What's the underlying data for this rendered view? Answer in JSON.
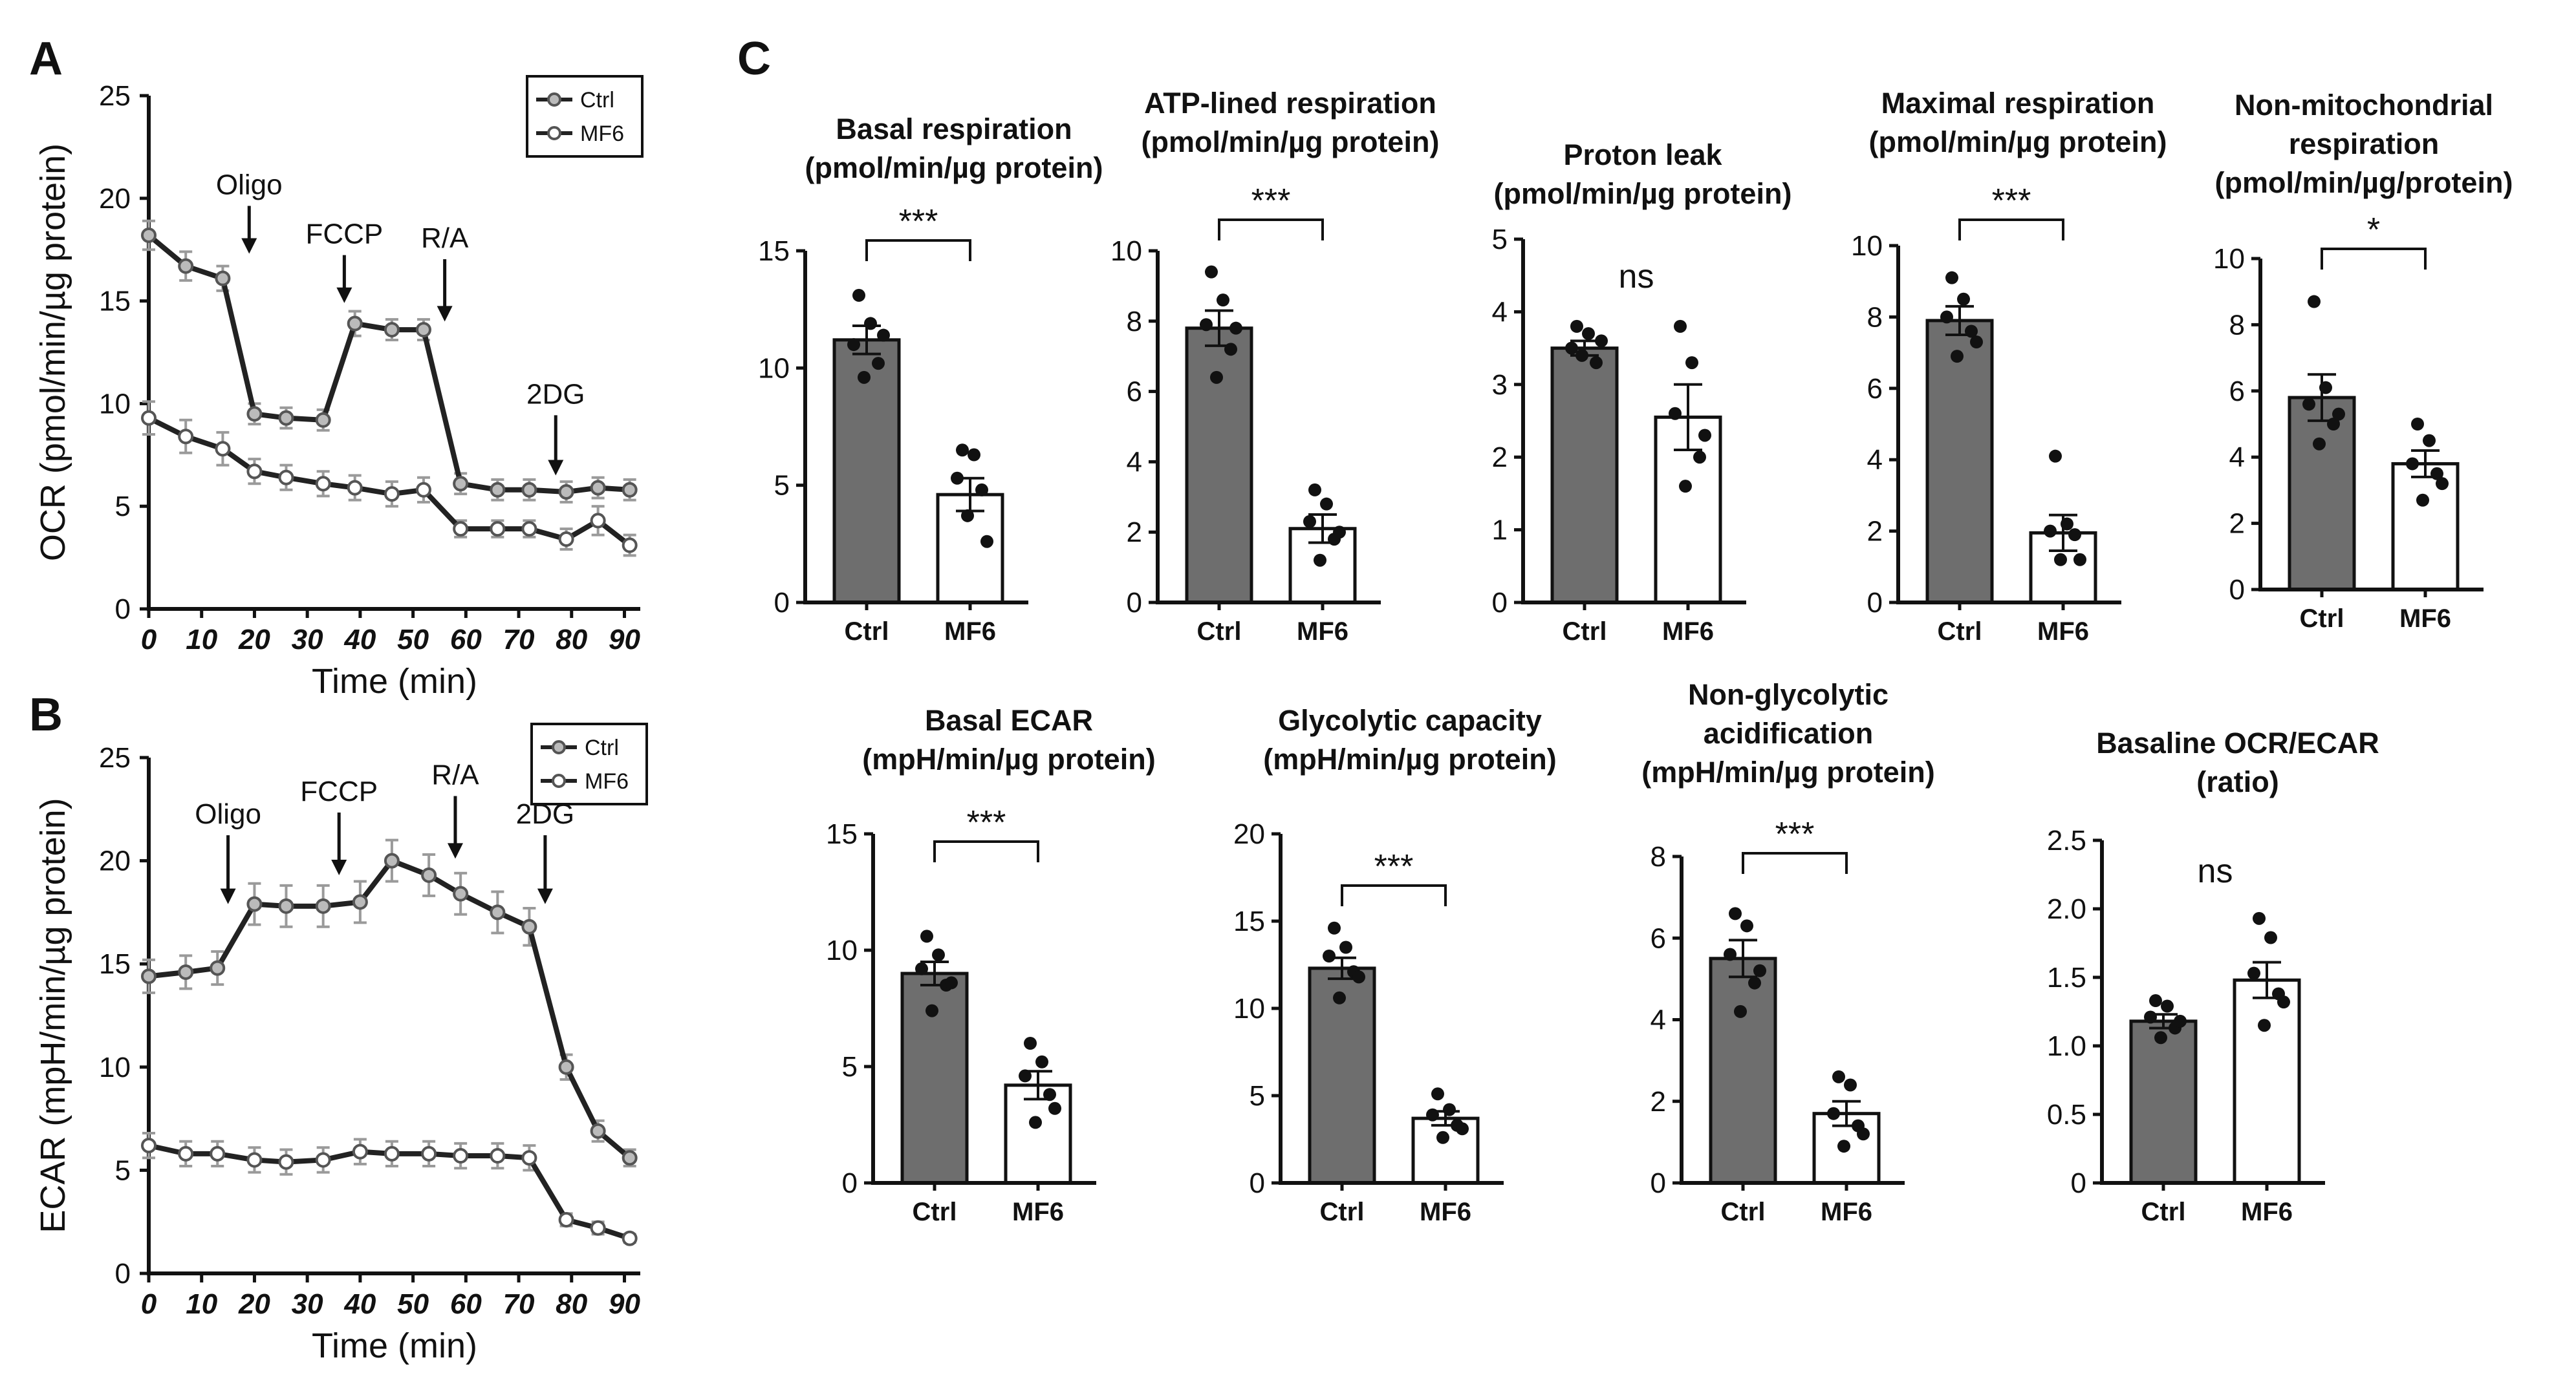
{
  "panels": {
    "a": "A",
    "b": "B",
    "c": "C"
  },
  "colors": {
    "ctrl_bar": "#6e6e6e",
    "mf6_bar": "#ffffff",
    "line": "#222222",
    "err": "#9a9a9a"
  },
  "chart_data": [
    {
      "id": "A",
      "type": "line",
      "xlabel": "Time (min)",
      "ylabel": "OCR (pmol/min/µg protein)",
      "xlim": [
        0,
        93
      ],
      "ylim": [
        0,
        25
      ],
      "xticks": [
        0,
        10,
        20,
        30,
        40,
        50,
        60,
        70,
        80,
        90
      ],
      "yticks": [
        0,
        5,
        10,
        15,
        20,
        25
      ],
      "legend": [
        "Ctrl",
        "MF6"
      ],
      "events": [
        {
          "label": "Oligo",
          "x": 19,
          "ytip": 17.3,
          "ytxt": 20.2
        },
        {
          "label": "FCCP",
          "x": 37,
          "ytip": 14.9,
          "ytxt": 17.8
        },
        {
          "label": "R/A",
          "x": 56,
          "ytip": 14.0,
          "ytxt": 17.6
        },
        {
          "label": "2DG",
          "x": 77,
          "ytip": 6.5,
          "ytxt": 10.0
        }
      ],
      "x": [
        0,
        7,
        14,
        20,
        26,
        33,
        39,
        46,
        52,
        59,
        66,
        72,
        79,
        85,
        91
      ],
      "series": [
        {
          "name": "Ctrl",
          "values": [
            18.2,
            16.7,
            16.1,
            9.5,
            9.3,
            9.2,
            13.9,
            13.6,
            13.6,
            6.1,
            5.8,
            5.8,
            5.7,
            5.9,
            5.8
          ],
          "err": [
            0.7,
            0.7,
            0.6,
            0.5,
            0.5,
            0.5,
            0.6,
            0.5,
            0.5,
            0.5,
            0.5,
            0.5,
            0.5,
            0.5,
            0.5
          ]
        },
        {
          "name": "MF6",
          "values": [
            9.3,
            8.4,
            7.8,
            6.7,
            6.4,
            6.1,
            5.9,
            5.6,
            5.8,
            3.9,
            3.9,
            3.9,
            3.4,
            4.3,
            3.1
          ],
          "err": [
            0.8,
            0.8,
            0.8,
            0.6,
            0.6,
            0.6,
            0.6,
            0.6,
            0.6,
            0.4,
            0.4,
            0.4,
            0.5,
            0.7,
            0.5
          ]
        }
      ]
    },
    {
      "id": "B",
      "type": "line",
      "xlabel": "Time (min)",
      "ylabel": "ECAR (mpH/min/µg protein)",
      "xlim": [
        0,
        93
      ],
      "ylim": [
        0,
        25
      ],
      "xticks": [
        0,
        10,
        20,
        30,
        40,
        50,
        60,
        70,
        80,
        90
      ],
      "yticks": [
        0,
        5,
        10,
        15,
        20,
        25
      ],
      "legend": [
        "Ctrl",
        "MF6"
      ],
      "events": [
        {
          "label": "Oligo",
          "x": 15,
          "ytip": 17.9,
          "ytxt": 21.8
        },
        {
          "label": "FCCP",
          "x": 36,
          "ytip": 19.3,
          "ytxt": 22.9
        },
        {
          "label": "R/A",
          "x": 58,
          "ytip": 20.1,
          "ytxt": 23.7
        },
        {
          "label": "2DG",
          "x": 75,
          "ytip": 17.9,
          "ytxt": 21.8
        }
      ],
      "x": [
        0,
        7,
        13,
        20,
        26,
        33,
        40,
        46,
        53,
        59,
        66,
        72,
        79,
        85,
        91
      ],
      "series": [
        {
          "name": "Ctrl",
          "values": [
            14.4,
            14.6,
            14.8,
            17.9,
            17.8,
            17.8,
            18.0,
            20.0,
            19.3,
            18.4,
            17.5,
            16.8,
            10.0,
            6.9,
            5.6
          ],
          "err": [
            0.8,
            0.8,
            0.8,
            1.0,
            1.0,
            1.0,
            1.0,
            1.0,
            1.0,
            1.0,
            1.0,
            0.9,
            0.6,
            0.5,
            0.4
          ]
        },
        {
          "name": "MF6",
          "values": [
            6.2,
            5.8,
            5.8,
            5.5,
            5.4,
            5.5,
            5.9,
            5.8,
            5.8,
            5.7,
            5.7,
            5.6,
            2.6,
            2.2,
            1.7
          ],
          "err": [
            0.6,
            0.6,
            0.6,
            0.6,
            0.6,
            0.6,
            0.6,
            0.6,
            0.6,
            0.6,
            0.6,
            0.6,
            0.3,
            0.3,
            0.2
          ]
        }
      ]
    },
    {
      "id": "C1",
      "type": "bar",
      "title": [
        "Basal respiration",
        "(pmol/min/µg protein)"
      ],
      "categories": [
        "Ctrl",
        "MF6"
      ],
      "values": [
        11.2,
        4.6
      ],
      "sem": [
        0.6,
        0.7
      ],
      "points": [
        [
          13.1,
          11.9,
          11.0,
          10.2,
          9.6,
          11.4
        ],
        [
          6.5,
          6.3,
          5.3,
          4.8,
          3.7,
          2.6
        ]
      ],
      "ylim": [
        0,
        15
      ],
      "yticks": [
        0,
        5,
        10,
        15
      ],
      "yticklabels": [
        "0",
        "5",
        "10",
        "15"
      ],
      "sig": "***"
    },
    {
      "id": "C2",
      "type": "bar",
      "title": [
        "ATP-lined respiration",
        "(pmol/min/µg protein)"
      ],
      "categories": [
        "Ctrl",
        "MF6"
      ],
      "values": [
        7.8,
        2.1
      ],
      "sem": [
        0.5,
        0.4
      ],
      "points": [
        [
          9.4,
          8.6,
          7.9,
          7.2,
          6.4,
          7.8
        ],
        [
          3.2,
          2.8,
          2.3,
          1.8,
          1.2,
          2.0
        ]
      ],
      "ylim": [
        0,
        10
      ],
      "yticks": [
        0,
        2,
        4,
        6,
        8,
        10
      ],
      "yticklabels": [
        "0",
        "2",
        "4",
        "6",
        "8",
        "10"
      ],
      "sig": "***"
    },
    {
      "id": "C3",
      "type": "bar",
      "title": [
        "Proton leak",
        "(pmol/min/µg protein)"
      ],
      "categories": [
        "Ctrl",
        "MF6"
      ],
      "values": [
        3.5,
        2.55
      ],
      "sem": [
        0.1,
        0.45
      ],
      "points": [
        [
          3.8,
          3.7,
          3.5,
          3.3,
          3.4,
          3.6
        ],
        [
          3.8,
          3.3,
          2.6,
          2.0,
          1.6,
          2.3
        ]
      ],
      "ylim": [
        0,
        5
      ],
      "yticks": [
        0,
        1,
        2,
        3,
        4,
        5
      ],
      "yticklabels": [
        "0",
        "1",
        "2",
        "3",
        "4",
        "5"
      ],
      "sig": "ns"
    },
    {
      "id": "C4",
      "type": "bar",
      "title": [
        "Maximal respiration",
        "(pmol/min/µg protein)"
      ],
      "categories": [
        "Ctrl",
        "MF6"
      ],
      "values": [
        7.9,
        1.95
      ],
      "sem": [
        0.4,
        0.5
      ],
      "points": [
        [
          9.1,
          8.5,
          8.0,
          7.6,
          6.9,
          7.3
        ],
        [
          4.1,
          2.2,
          2.0,
          1.9,
          1.2,
          1.2
        ]
      ],
      "ylim": [
        0,
        10
      ],
      "yticks": [
        0,
        2,
        4,
        6,
        8,
        10
      ],
      "yticklabels": [
        "0",
        "2",
        "4",
        "6",
        "8",
        "10"
      ],
      "sig": "***"
    },
    {
      "id": "C5",
      "type": "bar",
      "title": [
        "Non-mitochondrial",
        "respiration",
        "(pmol/min/µg/protein)"
      ],
      "categories": [
        "Ctrl",
        "MF6"
      ],
      "values": [
        5.8,
        3.8
      ],
      "sem": [
        0.7,
        0.4
      ],
      "points": [
        [
          8.7,
          6.1,
          5.6,
          5.0,
          4.4,
          5.3
        ],
        [
          5.0,
          4.5,
          3.8,
          3.5,
          2.7,
          3.2
        ]
      ],
      "ylim": [
        0,
        10
      ],
      "yticks": [
        0,
        2,
        4,
        6,
        8,
        10
      ],
      "yticklabels": [
        "0",
        "2",
        "4",
        "6",
        "8",
        "10"
      ],
      "sig": "*"
    },
    {
      "id": "C6",
      "type": "bar",
      "title": [
        "Basal ECAR",
        "(mpH/min/µg protein)"
      ],
      "categories": [
        "Ctrl",
        "MF6"
      ],
      "values": [
        9.0,
        4.2
      ],
      "sem": [
        0.5,
        0.6
      ],
      "points": [
        [
          10.6,
          9.8,
          9.2,
          8.5,
          7.4,
          8.6
        ],
        [
          6.0,
          5.2,
          4.6,
          3.8,
          2.6,
          3.2
        ]
      ],
      "ylim": [
        0,
        15
      ],
      "yticks": [
        0,
        5,
        10,
        15
      ],
      "yticklabels": [
        "0",
        "5",
        "10",
        "15"
      ],
      "sig": "***"
    },
    {
      "id": "C7",
      "type": "bar",
      "title": [
        "Glycolytic capacity",
        "(mpH/min/µg protein)"
      ],
      "categories": [
        "Ctrl",
        "MF6"
      ],
      "values": [
        12.3,
        3.7
      ],
      "sem": [
        0.6,
        0.4
      ],
      "points": [
        [
          14.6,
          13.5,
          13.0,
          12.1,
          10.6,
          11.8
        ],
        [
          5.1,
          4.2,
          3.9,
          3.3,
          2.6,
          3.1
        ]
      ],
      "ylim": [
        0,
        20
      ],
      "yticks": [
        0,
        5,
        10,
        15,
        20
      ],
      "yticklabels": [
        "0",
        "5",
        "10",
        "15",
        "20"
      ],
      "sig": "***"
    },
    {
      "id": "C8",
      "type": "bar",
      "title": [
        "Non-glycolytic",
        "acidification",
        "(mpH/min/µg protein)"
      ],
      "categories": [
        "Ctrl",
        "MF6"
      ],
      "values": [
        5.5,
        1.7
      ],
      "sem": [
        0.45,
        0.3
      ],
      "points": [
        [
          6.6,
          6.3,
          5.6,
          4.9,
          4.2,
          5.2
        ],
        [
          2.6,
          2.4,
          1.7,
          1.4,
          0.9,
          1.2
        ]
      ],
      "ylim": [
        0,
        8
      ],
      "yticks": [
        0,
        2,
        4,
        6,
        8
      ],
      "yticklabels": [
        "0",
        "2",
        "4",
        "6",
        "8"
      ],
      "sig": "***"
    },
    {
      "id": "C9",
      "type": "bar",
      "title": [
        "Basaline OCR/ECAR",
        "(ratio)"
      ],
      "categories": [
        "Ctrl",
        "MF6"
      ],
      "values": [
        1.18,
        1.48
      ],
      "sem": [
        0.05,
        0.13
      ],
      "points": [
        [
          1.33,
          1.29,
          1.21,
          1.13,
          1.06,
          1.18
        ],
        [
          1.93,
          1.79,
          1.53,
          1.38,
          1.15,
          1.32
        ]
      ],
      "ylim": [
        0,
        2.5
      ],
      "yticks": [
        0,
        0.5,
        1,
        1.5,
        2,
        2.5
      ],
      "yticklabels": [
        "0",
        "0.5",
        "1.0",
        "1.5",
        "2.0",
        "2.5"
      ],
      "sig": "ns"
    }
  ]
}
